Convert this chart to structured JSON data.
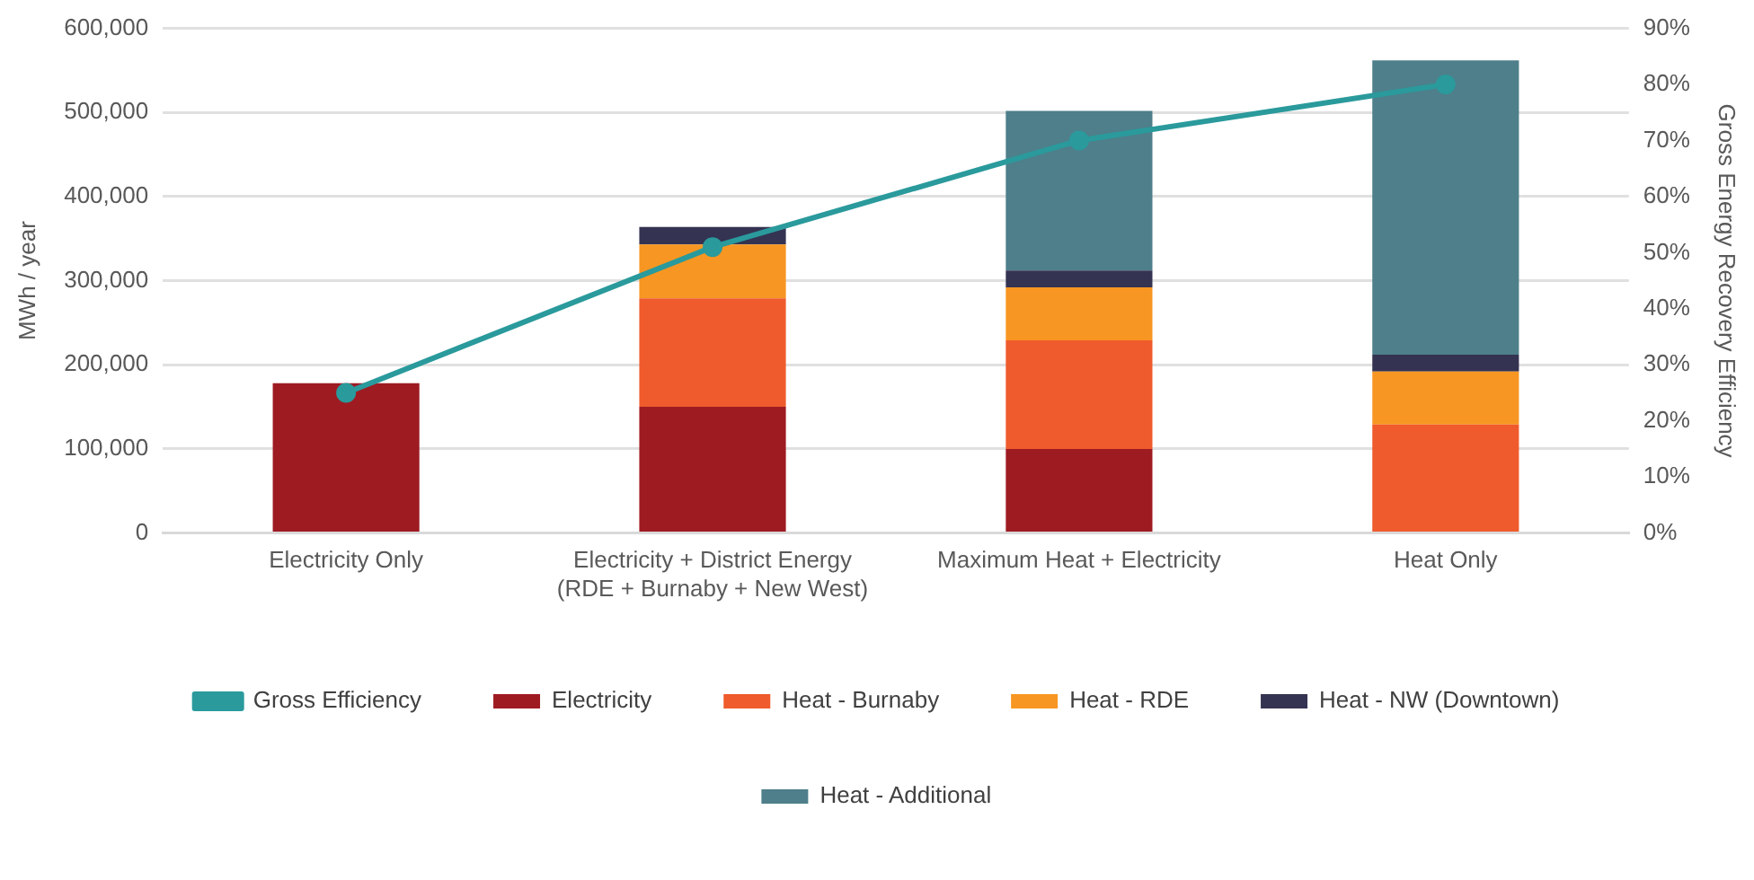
{
  "chart_data": {
    "type": "bar",
    "stacked": true,
    "ylabel": "MWh / year",
    "y2label": "Gross Energy Recovery Efficiency",
    "categories": [
      "Electricity Only",
      "Electricity + District Energy (RDE + Burnaby + New West)",
      "Maximum Heat + Electricity",
      "Heat Only"
    ],
    "series": [
      {
        "name": "Electricity",
        "color": "#9e1b22",
        "values": [
          178000,
          150000,
          100000,
          null
        ]
      },
      {
        "name": "Heat - Burnaby",
        "color": "#ef5b2c",
        "values": [
          null,
          129000,
          129000,
          129000
        ]
      },
      {
        "name": "Heat - RDE",
        "color": "#f79622",
        "values": [
          null,
          64000,
          63000,
          63000
        ]
      },
      {
        "name": "Heat - NW (Downtown)",
        "color": "#343352",
        "values": [
          null,
          21000,
          20000,
          20000
        ]
      },
      {
        "name": "Heat - Additional",
        "color": "#4e7f8a",
        "values": [
          null,
          null,
          190000,
          350000
        ]
      },
      {
        "name": "Gross Efficiency",
        "type": "line",
        "axis": "y2",
        "color": "#2a9a9c",
        "values": [
          25,
          51,
          70,
          80
        ]
      }
    ],
    "ylim": [
      0,
      600000
    ],
    "yticks": [
      0,
      {
        "value": 100000,
        "label": "100,000"
      },
      {
        "value": 200000,
        "label": "200,000"
      },
      {
        "value": 300000,
        "label": "300,000"
      },
      {
        "value": 400000,
        "label": "400,000"
      },
      {
        "value": 500000,
        "label": "500,000"
      },
      {
        "value": 600000,
        "label": "600,000"
      }
    ],
    "y2lim": [
      0,
      90
    ],
    "y2ticks": [
      {
        "value": 0,
        "label": "0%"
      },
      {
        "value": 10,
        "label": "10%"
      },
      {
        "value": 20,
        "label": "20%"
      },
      {
        "value": 30,
        "label": "30%"
      },
      {
        "value": 40,
        "label": "40%"
      },
      {
        "value": 50,
        "label": "50%"
      },
      {
        "value": 60,
        "label": "60%"
      },
      {
        "value": 70,
        "label": "70%"
      },
      {
        "value": 80,
        "label": "80%"
      },
      {
        "value": 90,
        "label": "90%"
      }
    ],
    "grid": "y",
    "legend": "bottom",
    "marker": "circle",
    "line_style": "solid"
  }
}
